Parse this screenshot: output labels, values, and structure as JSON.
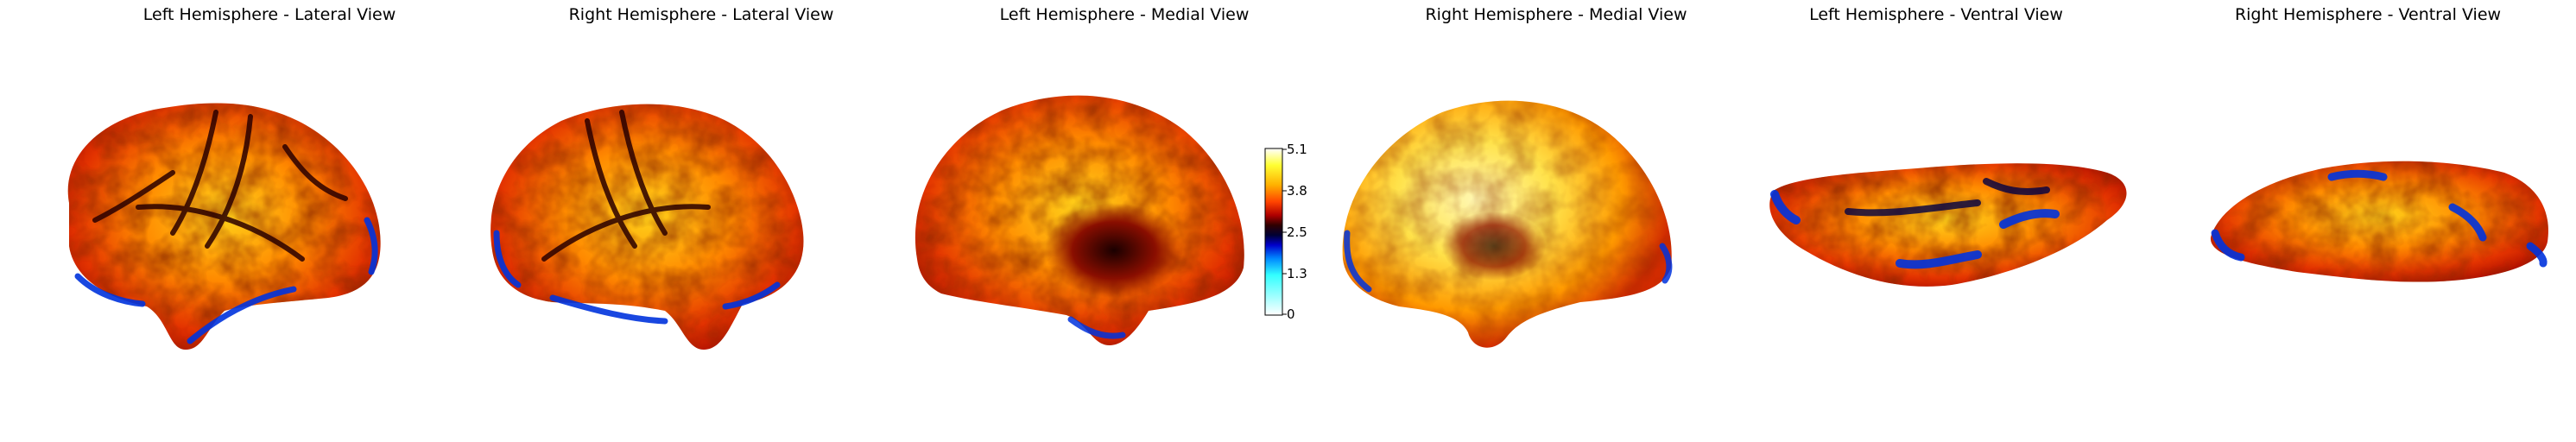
{
  "panels": [
    {
      "title": "Left Hemisphere - Lateral View",
      "icon": "brain-left-lateral-icon"
    },
    {
      "title": "Right Hemisphere - Lateral View",
      "icon": "brain-right-lateral-icon"
    },
    {
      "title": "Left Hemisphere - Medial View",
      "icon": "brain-left-medial-icon"
    },
    {
      "title": "Right Hemisphere - Medial View",
      "icon": "brain-right-medial-icon"
    },
    {
      "title": "Left Hemisphere - Ventral View",
      "icon": "brain-left-ventral-icon"
    },
    {
      "title": "Right Hemisphere - Ventral View",
      "icon": "brain-right-ventral-icon"
    }
  ],
  "colorbar": {
    "ticks": [
      "5.1",
      "3.8",
      "2.5",
      "1.3",
      "0"
    ],
    "colormap": [
      "#ffffff",
      "#ffff33",
      "#ffb000",
      "#ff4400",
      "#b00000",
      "#300000",
      "#000033",
      "#0000cc",
      "#0088ff",
      "#33ffff",
      "#ffffff"
    ]
  }
}
